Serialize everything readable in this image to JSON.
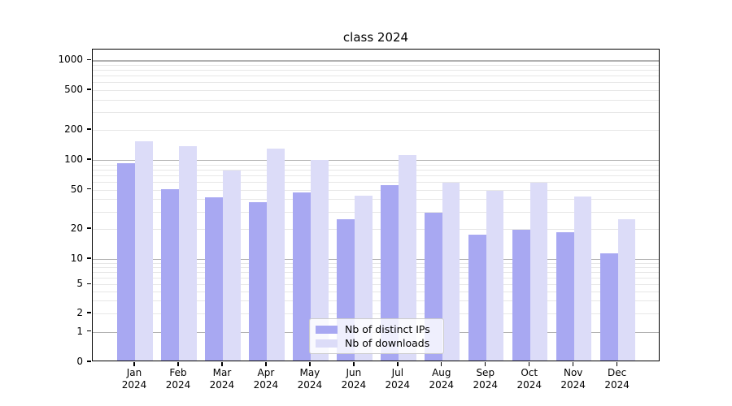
{
  "title": "class 2024",
  "chart_data": {
    "type": "bar",
    "title": "class 2024",
    "categories": [
      "Jan 2024",
      "Feb 2024",
      "Mar 2024",
      "Apr 2024",
      "May 2024",
      "Jun 2024",
      "Jul 2024",
      "Aug 2024",
      "Sep 2024",
      "Oct 2024",
      "Nov 2024",
      "Dec 2024"
    ],
    "series": [
      {
        "name": "Nb of distinct IPs",
        "color": "#a8a8f2",
        "values": [
          90,
          49,
          40,
          36,
          45,
          24,
          54,
          28,
          17,
          19,
          18,
          11
        ]
      },
      {
        "name": "Nb of downloads",
        "color": "#dcdcf8",
        "values": [
          148,
          133,
          76,
          126,
          96,
          42,
          108,
          57,
          47,
          57,
          41,
          24
        ]
      }
    ],
    "xlabel": "",
    "ylabel": "",
    "yticks": [
      0,
      1,
      2,
      5,
      10,
      20,
      50,
      100,
      200,
      500,
      1000
    ],
    "ylim": [
      0,
      1250
    ],
    "yscale": "quasi-log",
    "grid": "horizontal major+minor",
    "legend_position": "lower center"
  },
  "colors": {
    "major_grid": "#b2b2b2",
    "minor_grid": "#e7e7e7",
    "axis": "#000000",
    "background": "#ffffff"
  }
}
